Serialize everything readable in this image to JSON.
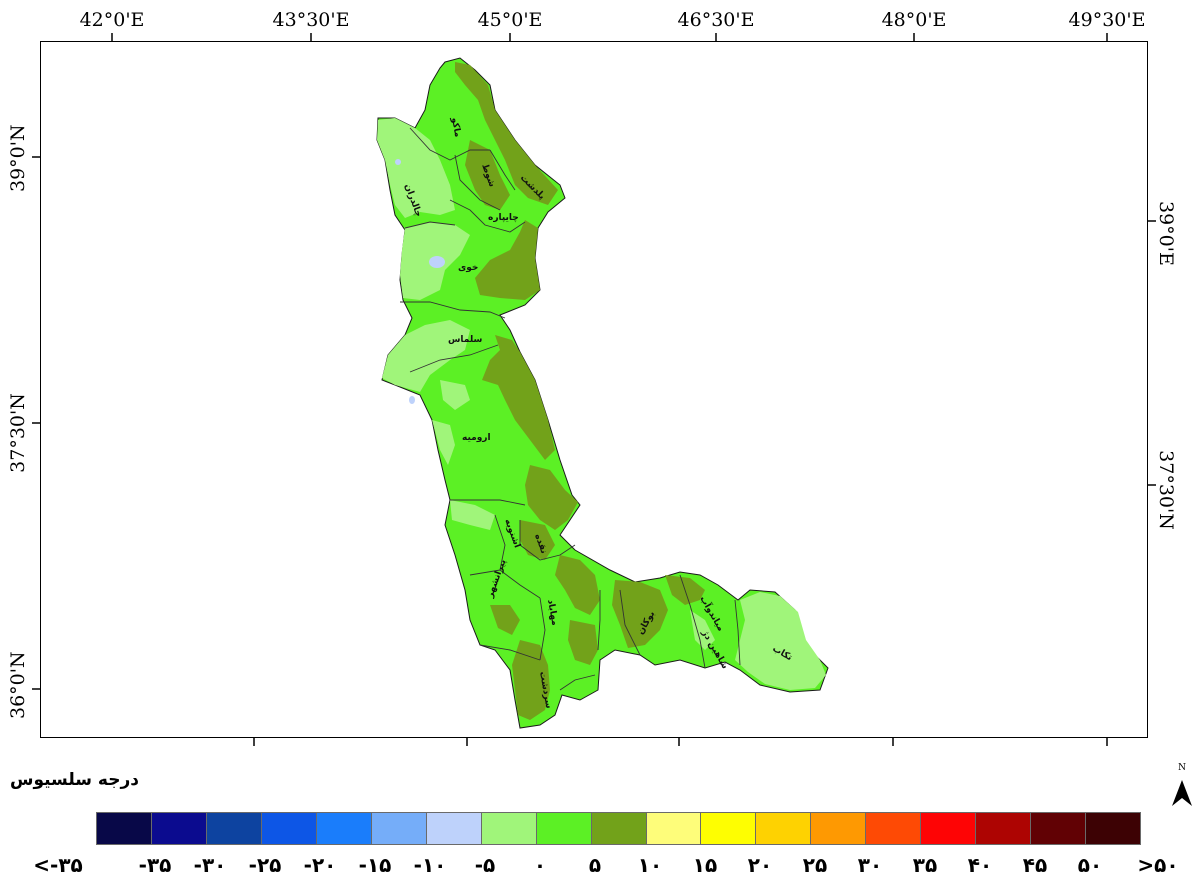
{
  "map": {
    "top_axis_labels": [
      "42°0'E",
      "43°30'E",
      "45°0'E",
      "46°30'E",
      "48°0'E",
      "49°30'E"
    ],
    "left_axis_labels": [
      "39°0'N",
      "37°30'N",
      "36°0'N"
    ],
    "right_axis_labels": [
      "39°0'E",
      "37°30'N"
    ],
    "north_symbol": "N",
    "region_labels": [
      "ماکو",
      "شوط",
      "پلدشت",
      "چالدران",
      "چایپاره",
      "خوی",
      "سلماس",
      "ارومیه",
      "اشنویه",
      "نقده",
      "پیرانشهر",
      "مهاباد",
      "میاندوآب",
      "شاهین دژ",
      "تکاب",
      "سردشت",
      "بوکان"
    ]
  },
  "legend": {
    "title": "درجه سلسیوس",
    "colors": [
      "#080848",
      "#0b0b8f",
      "#0d43a0",
      "#0d56e6",
      "#1a7dfb",
      "#75adf9",
      "#bed2fb",
      "#a0f57a",
      "#5cf025",
      "#72a21a",
      "#fefd7a",
      "#fefe01",
      "#fed201",
      "#fe9902",
      "#fe4a05",
      "#fe0405",
      "#ad0402",
      "#610104",
      "#3d0204"
    ],
    "labels": [
      "<-۳۵",
      "-۳۵",
      "-۳۰",
      "-۲۵",
      "-۲۰",
      "-۱۵",
      "-۱۰",
      "-۵",
      "۰",
      "۵",
      "۱۰",
      "۱۵",
      "۲۰",
      "۲۵",
      "۳۰",
      "۳۵",
      "۴۰",
      "۴۵",
      "۵۰",
      ">۵۰"
    ]
  }
}
